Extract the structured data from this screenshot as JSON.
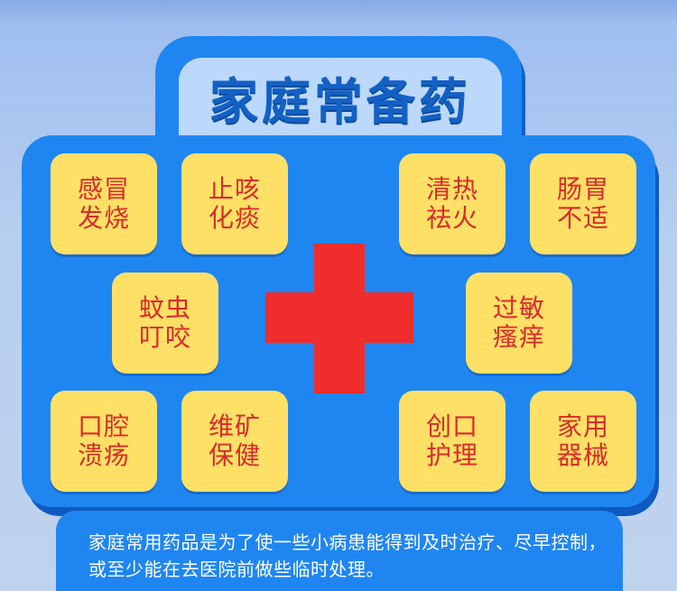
{
  "title": "家庭常备药",
  "tiles": [
    {
      "line1": "感冒",
      "line2": "发烧"
    },
    {
      "line1": "止咳",
      "line2": "化痰"
    },
    {
      "line1": "清热",
      "line2": "祛火"
    },
    {
      "line1": "肠胃",
      "line2": "不适"
    },
    {
      "line1": "蚊虫",
      "line2": "叮咬"
    },
    {
      "line1": "过敏",
      "line2": "瘙痒"
    },
    {
      "line1": "口腔",
      "line2": "溃疡"
    },
    {
      "line1": "维矿",
      "line2": "保健"
    },
    {
      "line1": "创口",
      "line2": "护理"
    },
    {
      "line1": "家用",
      "line2": "器械"
    }
  ],
  "description": "家庭常用药品是为了使一些小病患能得到及时治疗、尽早控制，或至少能在去医院前做些临时处理。",
  "colors": {
    "case_blue": "#1f86f1",
    "tile_yellow": "#ffe066",
    "tile_text_red": "#d92b2b",
    "cross_red": "#ef2d2d",
    "title_blue": "#1361c5"
  },
  "icons": {
    "center": "red-cross-icon"
  }
}
